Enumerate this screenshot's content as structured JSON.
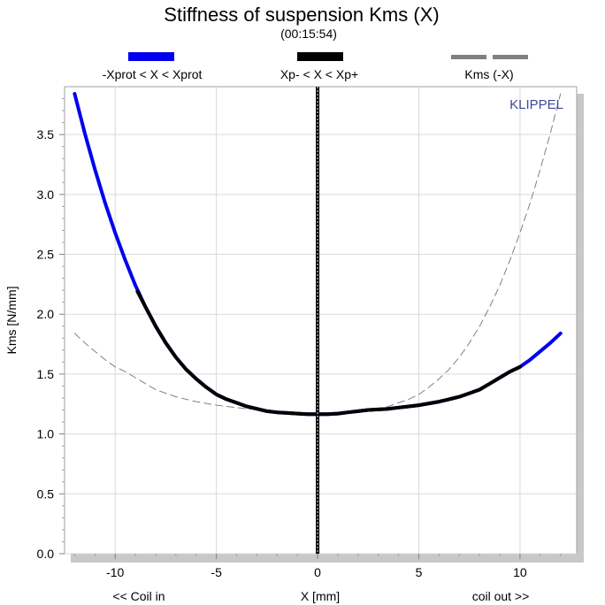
{
  "chart_data": {
    "type": "line",
    "title": "Stiffness of suspension Kms (X)",
    "subtitle": "(00:15:54)",
    "xlabel": "X [mm]",
    "ylabel": "Kms [N/mm]",
    "x_note_left": "<< Coil in",
    "x_note_right": "coil out >>",
    "brand": "KLIPPEL",
    "xlim": [
      -12.5,
      12.8
    ],
    "ylim": [
      0,
      3.9
    ],
    "x_ticks": [
      -10,
      -5,
      0,
      5,
      10
    ],
    "y_ticks": [
      0.0,
      0.5,
      1.0,
      1.5,
      2.0,
      2.5,
      3.0,
      3.5
    ],
    "grid": true,
    "legend": [
      {
        "name": "-Xprot < X < Xprot",
        "color": "#0000ee",
        "style": "solid"
      },
      {
        "name": "Xp- < X < Xp+",
        "color": "#000000",
        "style": "solid"
      },
      {
        "name": "Kms (-X)",
        "color": "#808080",
        "style": "dashed"
      }
    ],
    "series": [
      {
        "name": "-Xprot < X < Xprot",
        "color": "#0000ee",
        "x": [
          -12,
          -11.5,
          -11,
          -10.5,
          -10,
          -9.5,
          -9,
          -8.5,
          -8,
          -7.5,
          -7,
          -6.5,
          -6,
          -5.5,
          -5,
          -4.5,
          -4,
          -3.5,
          -3,
          -2.5,
          -2,
          -1.5,
          -1,
          -0.5,
          0,
          0.5,
          1,
          1.5,
          2,
          2.5,
          3,
          3.5,
          4,
          4.5,
          5,
          5.5,
          6,
          6.5,
          7,
          7.5,
          8,
          8.5,
          9,
          9.5,
          10,
          10.5,
          11,
          11.5,
          12
        ],
        "y": [
          3.84,
          3.51,
          3.21,
          2.93,
          2.68,
          2.45,
          2.24,
          2.06,
          1.9,
          1.76,
          1.64,
          1.54,
          1.46,
          1.39,
          1.33,
          1.29,
          1.26,
          1.23,
          1.21,
          1.19,
          1.18,
          1.175,
          1.17,
          1.165,
          1.165,
          1.165,
          1.17,
          1.18,
          1.19,
          1.2,
          1.205,
          1.21,
          1.22,
          1.23,
          1.24,
          1.255,
          1.27,
          1.29,
          1.31,
          1.34,
          1.37,
          1.42,
          1.47,
          1.52,
          1.56,
          1.62,
          1.69,
          1.76,
          1.84
        ]
      },
      {
        "name": "Xp- < X < Xp+",
        "color": "#000000",
        "x": [
          -8.9,
          -8.5,
          -8,
          -7.5,
          -7,
          -6.5,
          -6,
          -5.5,
          -5,
          -4.5,
          -4,
          -3.5,
          -3,
          -2.5,
          -2,
          -1.5,
          -1,
          -0.5,
          0,
          0.5,
          1,
          1.5,
          2,
          2.5,
          3,
          3.5,
          4,
          4.5,
          5,
          5.5,
          6,
          6.5,
          7,
          7.5,
          8,
          8.5,
          9,
          9.5,
          10
        ],
        "y": [
          2.19,
          2.06,
          1.9,
          1.76,
          1.64,
          1.54,
          1.46,
          1.39,
          1.33,
          1.29,
          1.26,
          1.23,
          1.21,
          1.19,
          1.18,
          1.175,
          1.17,
          1.165,
          1.165,
          1.165,
          1.17,
          1.18,
          1.19,
          1.2,
          1.205,
          1.21,
          1.22,
          1.23,
          1.24,
          1.255,
          1.27,
          1.29,
          1.31,
          1.34,
          1.37,
          1.42,
          1.47,
          1.52,
          1.56
        ]
      },
      {
        "name": "Kms (-X)",
        "color": "#808080",
        "x": [
          -12,
          -11.5,
          -11,
          -10.5,
          -10,
          -9.5,
          -9,
          -8.5,
          -8,
          -7.5,
          -7,
          -6.5,
          -6,
          -5.5,
          -5,
          -4.5,
          -4,
          -3.5,
          -3,
          -2.5,
          -2,
          -1.5,
          -1,
          -0.5,
          0,
          0.5,
          1,
          1.5,
          2,
          2.5,
          3,
          3.5,
          4,
          4.5,
          5,
          5.5,
          6,
          6.5,
          7,
          7.5,
          8,
          8.5,
          9,
          9.5,
          10,
          10.5,
          11,
          11.5,
          12
        ],
        "y": [
          1.84,
          1.76,
          1.69,
          1.62,
          1.56,
          1.52,
          1.47,
          1.42,
          1.37,
          1.34,
          1.31,
          1.29,
          1.27,
          1.255,
          1.24,
          1.23,
          1.22,
          1.21,
          1.205,
          1.2,
          1.19,
          1.18,
          1.17,
          1.165,
          1.165,
          1.165,
          1.17,
          1.175,
          1.18,
          1.19,
          1.21,
          1.23,
          1.26,
          1.29,
          1.33,
          1.39,
          1.46,
          1.54,
          1.64,
          1.76,
          1.9,
          2.06,
          2.24,
          2.45,
          2.68,
          2.93,
          3.21,
          3.51,
          3.84
        ]
      }
    ]
  }
}
